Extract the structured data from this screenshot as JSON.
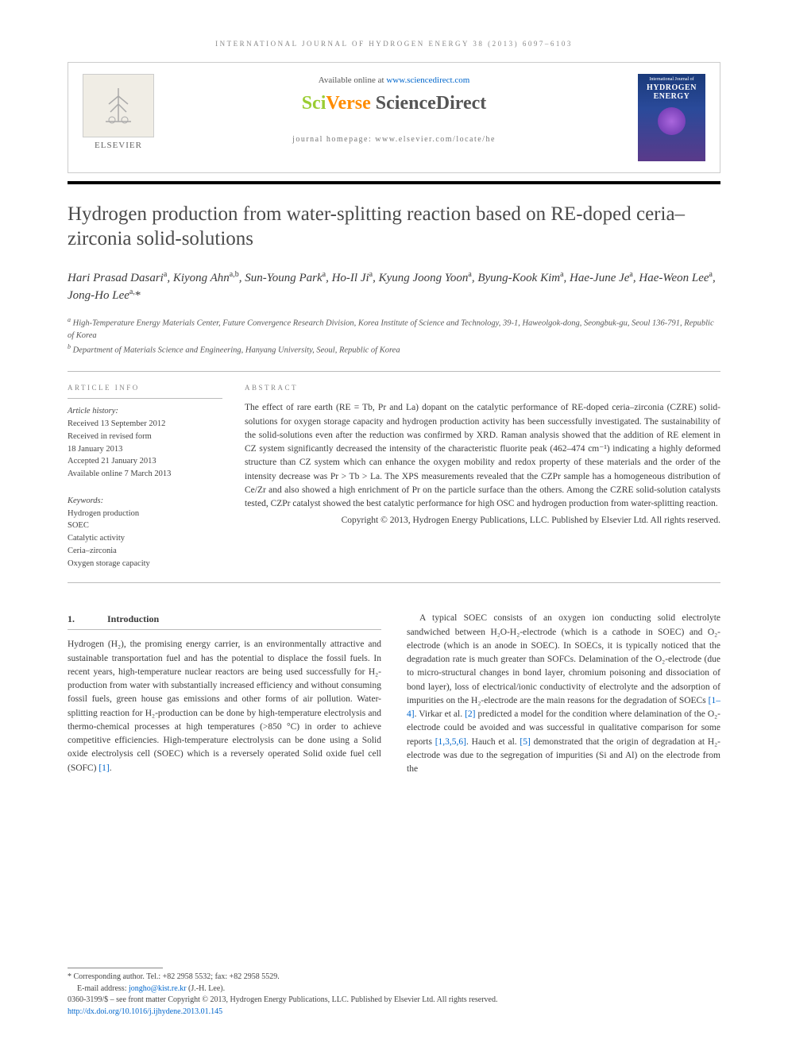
{
  "running_head": "INTERNATIONAL JOURNAL OF HYDROGEN ENERGY 38 (2013) 6097–6103",
  "header": {
    "available_text": "Available online at ",
    "available_link": "www.sciencedirect.com",
    "sciverse_sci": "Sci",
    "sciverse_verse": "Verse",
    "sciverse_sd": " ScienceDirect",
    "homepage_label": "journal homepage: ",
    "homepage_url": "www.elsevier.com/locate/he",
    "elsevier_label": "ELSEVIER",
    "cover_small": "International Journal of",
    "cover_main1": "HYDROGEN",
    "cover_main2": "ENERGY"
  },
  "title": "Hydrogen production from water-splitting reaction based on RE-doped ceria–zirconia solid-solutions",
  "authors_html": "Hari Prasad Dasari<sup>a</sup>, Kiyong Ahn<sup>a,b</sup>, Sun-Young Park<sup>a</sup>, Ho-Il Ji<sup>a</sup>, Kyung Joong Yoon<sup>a</sup>, Byung-Kook Kim<sup>a</sup>, Hae-June Je<sup>a</sup>, Hae-Weon Lee<sup>a</sup>, Jong-Ho Lee<sup>a,</sup><span class=\"corr\">*</span>",
  "affiliations": {
    "a": "High-Temperature Energy Materials Center, Future Convergence Research Division, Korea Institute of Science and Technology, 39-1, Haweolgok-dong, Seongbuk-gu, Seoul 136-791, Republic of Korea",
    "b": "Department of Materials Science and Engineering, Hanyang University, Seoul, Republic of Korea"
  },
  "info": {
    "label": "ARTICLE INFO",
    "history_label": "Article history:",
    "received": "Received 13 September 2012",
    "revised1": "Received in revised form",
    "revised2": "18 January 2013",
    "accepted": "Accepted 21 January 2013",
    "online": "Available online 7 March 2013",
    "keywords_label": "Keywords:",
    "keywords": [
      "Hydrogen production",
      "SOEC",
      "Catalytic activity",
      "Ceria–zirconia",
      "Oxygen storage capacity"
    ]
  },
  "abstract": {
    "label": "ABSTRACT",
    "text": "The effect of rare earth (RE = Tb, Pr and La) dopant on the catalytic performance of RE-doped ceria–zirconia (CZRE) solid-solutions for oxygen storage capacity and hydrogen production activity has been successfully investigated. The sustainability of the solid-solutions even after the reduction was confirmed by XRD. Raman analysis showed that the addition of RE element in CZ system significantly decreased the intensity of the characteristic fluorite peak (462–474 cm⁻¹) indicating a highly deformed structure than CZ system which can enhance the oxygen mobility and redox property of these materials and the order of the intensity decrease was Pr > Tb > La. The XPS measurements revealed that the CZPr sample has a homogeneous distribution of Ce/Zr and also showed a high enrichment of Pr on the particle surface than the others. Among the CZRE solid-solution catalysts tested, CZPr catalyst showed the best catalytic performance for high OSC and hydrogen production from water-splitting reaction.",
    "copyright": "Copyright © 2013, Hydrogen Energy Publications, LLC. Published by Elsevier Ltd. All rights reserved."
  },
  "body": {
    "section_num": "1.",
    "section_title": "Introduction",
    "col1_p1": "Hydrogen (H₂), the promising energy carrier, is an environmentally attractive and sustainable transportation fuel and has the potential to displace the fossil fuels. In recent years, high-temperature nuclear reactors are being used successfully for H₂-production from water with substantially increased efficiency and without consuming fossil fuels, green house gas emissions and other forms of air pollution. Water-splitting reaction for H₂-production can be done by high-temperature electrolysis and thermo-chemical processes at high temperatures (>850 °C) in order to achieve competitive efficiencies. High-temperature electrolysis can be done using a Solid oxide electrolysis cell (SOEC) which is a reversely operated Solid oxide fuel cell (SOFC) ",
    "col1_ref1": "[1]",
    "col1_tail": ".",
    "col2_p1a": "A typical SOEC consists of an oxygen ion conducting solid electrolyte sandwiched between H₂O-H₂-electrode (which is a cathode in SOEC) and O₂-electrode (which is an anode in SOEC). In SOECs, it is typically noticed that the degradation rate is much greater than SOFCs. Delamination of the O₂-electrode (due to micro-structural changes in bond layer, chromium poisoning and dissociation of bond layer), loss of electrical/ionic conductivity of electrolyte and the adsorption of impurities on the H₂-electrode are the main reasons for the degradation of SOECs ",
    "col2_ref1": "[1–4]",
    "col2_p1b": ". Virkar et al. ",
    "col2_ref2": "[2]",
    "col2_p1c": " predicted a model for the condition where delamination of the O₂-electrode could be avoided and was successful in qualitative comparison for some reports ",
    "col2_ref3": "[1,3,5,6]",
    "col2_p1d": ". Hauch et al. ",
    "col2_ref4": "[5]",
    "col2_p1e": " demonstrated that the origin of degradation at H₂-electrode was due to the segregation of impurities (Si and Al) on the electrode from the"
  },
  "footnotes": {
    "corr": "* Corresponding author. Tel.: +82 2958 5532; fax: +82 2958 5529.",
    "email_label": "E-mail address: ",
    "email": "jongho@kist.re.kr",
    "email_tail": " (J.-H. Lee).",
    "issn": "0360-3199/$ – see front matter Copyright © 2013, Hydrogen Energy Publications, LLC. Published by Elsevier Ltd. All rights reserved.",
    "doi_label": "",
    "doi": "http://dx.doi.org/10.1016/j.ijhydene.2013.01.145"
  },
  "colors": {
    "text": "#3a3a3a",
    "muted": "#888888",
    "link": "#0066cc",
    "rule": "#bbbbbb",
    "sciverse_green": "#9acd32",
    "sciverse_orange": "#ff8c00"
  }
}
